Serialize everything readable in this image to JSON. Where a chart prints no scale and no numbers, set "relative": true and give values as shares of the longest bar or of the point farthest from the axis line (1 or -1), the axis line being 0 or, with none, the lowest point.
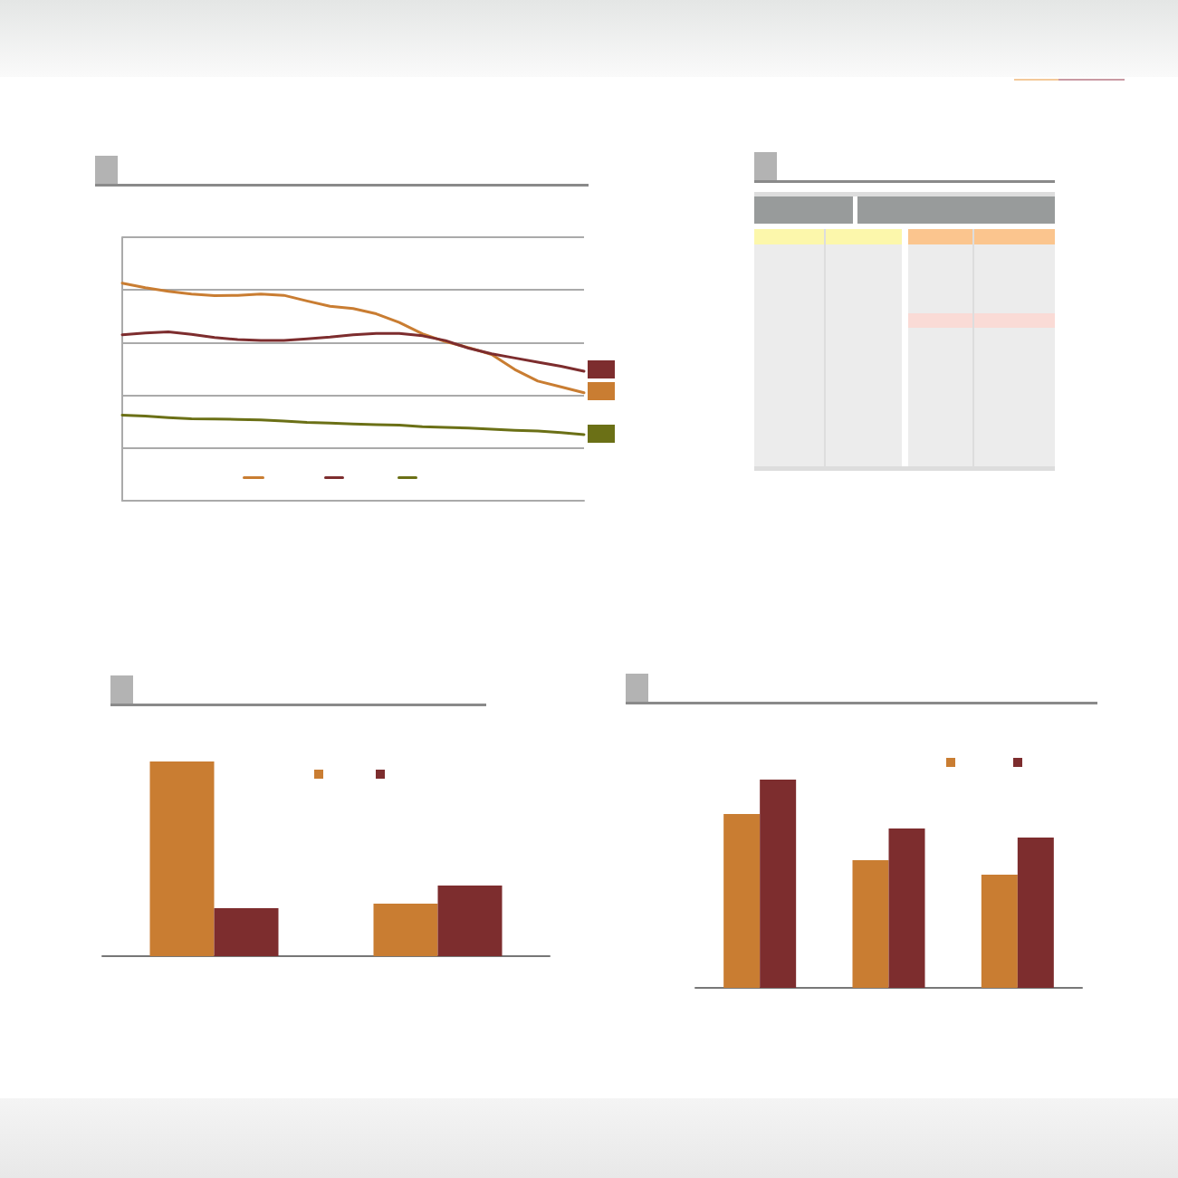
{
  "chart_data": [
    {
      "type": "line",
      "relative": true,
      "grid": "y",
      "categories": [
        null,
        null,
        null,
        null,
        null,
        null,
        null,
        null,
        null,
        null,
        null,
        null,
        null,
        null,
        null,
        null,
        null,
        null,
        null,
        null,
        null
      ],
      "series": [
        {
          "color": "#c97d32",
          "values": [
            1.0,
            0.979,
            0.962,
            0.95,
            0.943,
            0.944,
            0.95,
            0.944,
            0.918,
            0.894,
            0.883,
            0.859,
            0.819,
            0.767,
            0.731,
            0.704,
            0.672,
            0.603,
            0.55,
            0.523,
            0.496
          ]
        },
        {
          "color": "#7d2d2e",
          "values": [
            0.763,
            0.771,
            0.776,
            0.765,
            0.75,
            0.741,
            0.737,
            0.737,
            0.744,
            0.752,
            0.763,
            0.769,
            0.769,
            0.758,
            0.736,
            0.701,
            0.675,
            0.656,
            0.637,
            0.618,
            0.595
          ]
        },
        {
          "color": "#6b7016",
          "values": [
            0.393,
            0.389,
            0.382,
            0.377,
            0.376,
            0.374,
            0.371,
            0.366,
            0.36,
            0.357,
            0.353,
            0.35,
            0.347,
            0.34,
            0.337,
            0.334,
            0.329,
            0.324,
            0.32,
            0.313,
            0.304
          ]
        }
      ]
    },
    {
      "type": "bar",
      "relative": true,
      "categories": [
        null,
        null
      ],
      "series": [
        {
          "color": "#c97d32",
          "values": [
            1.0,
            0.27
          ]
        },
        {
          "color": "#7d2d2e",
          "values": [
            0.247,
            0.363
          ]
        }
      ]
    },
    {
      "type": "bar",
      "relative": true,
      "categories": [
        null,
        null,
        null
      ],
      "series": [
        {
          "color": "#c97d32",
          "values": [
            0.835,
            0.613,
            0.543
          ]
        },
        {
          "color": "#7d2d2e",
          "values": [
            1.0,
            0.765,
            0.722
          ]
        }
      ]
    }
  ]
}
